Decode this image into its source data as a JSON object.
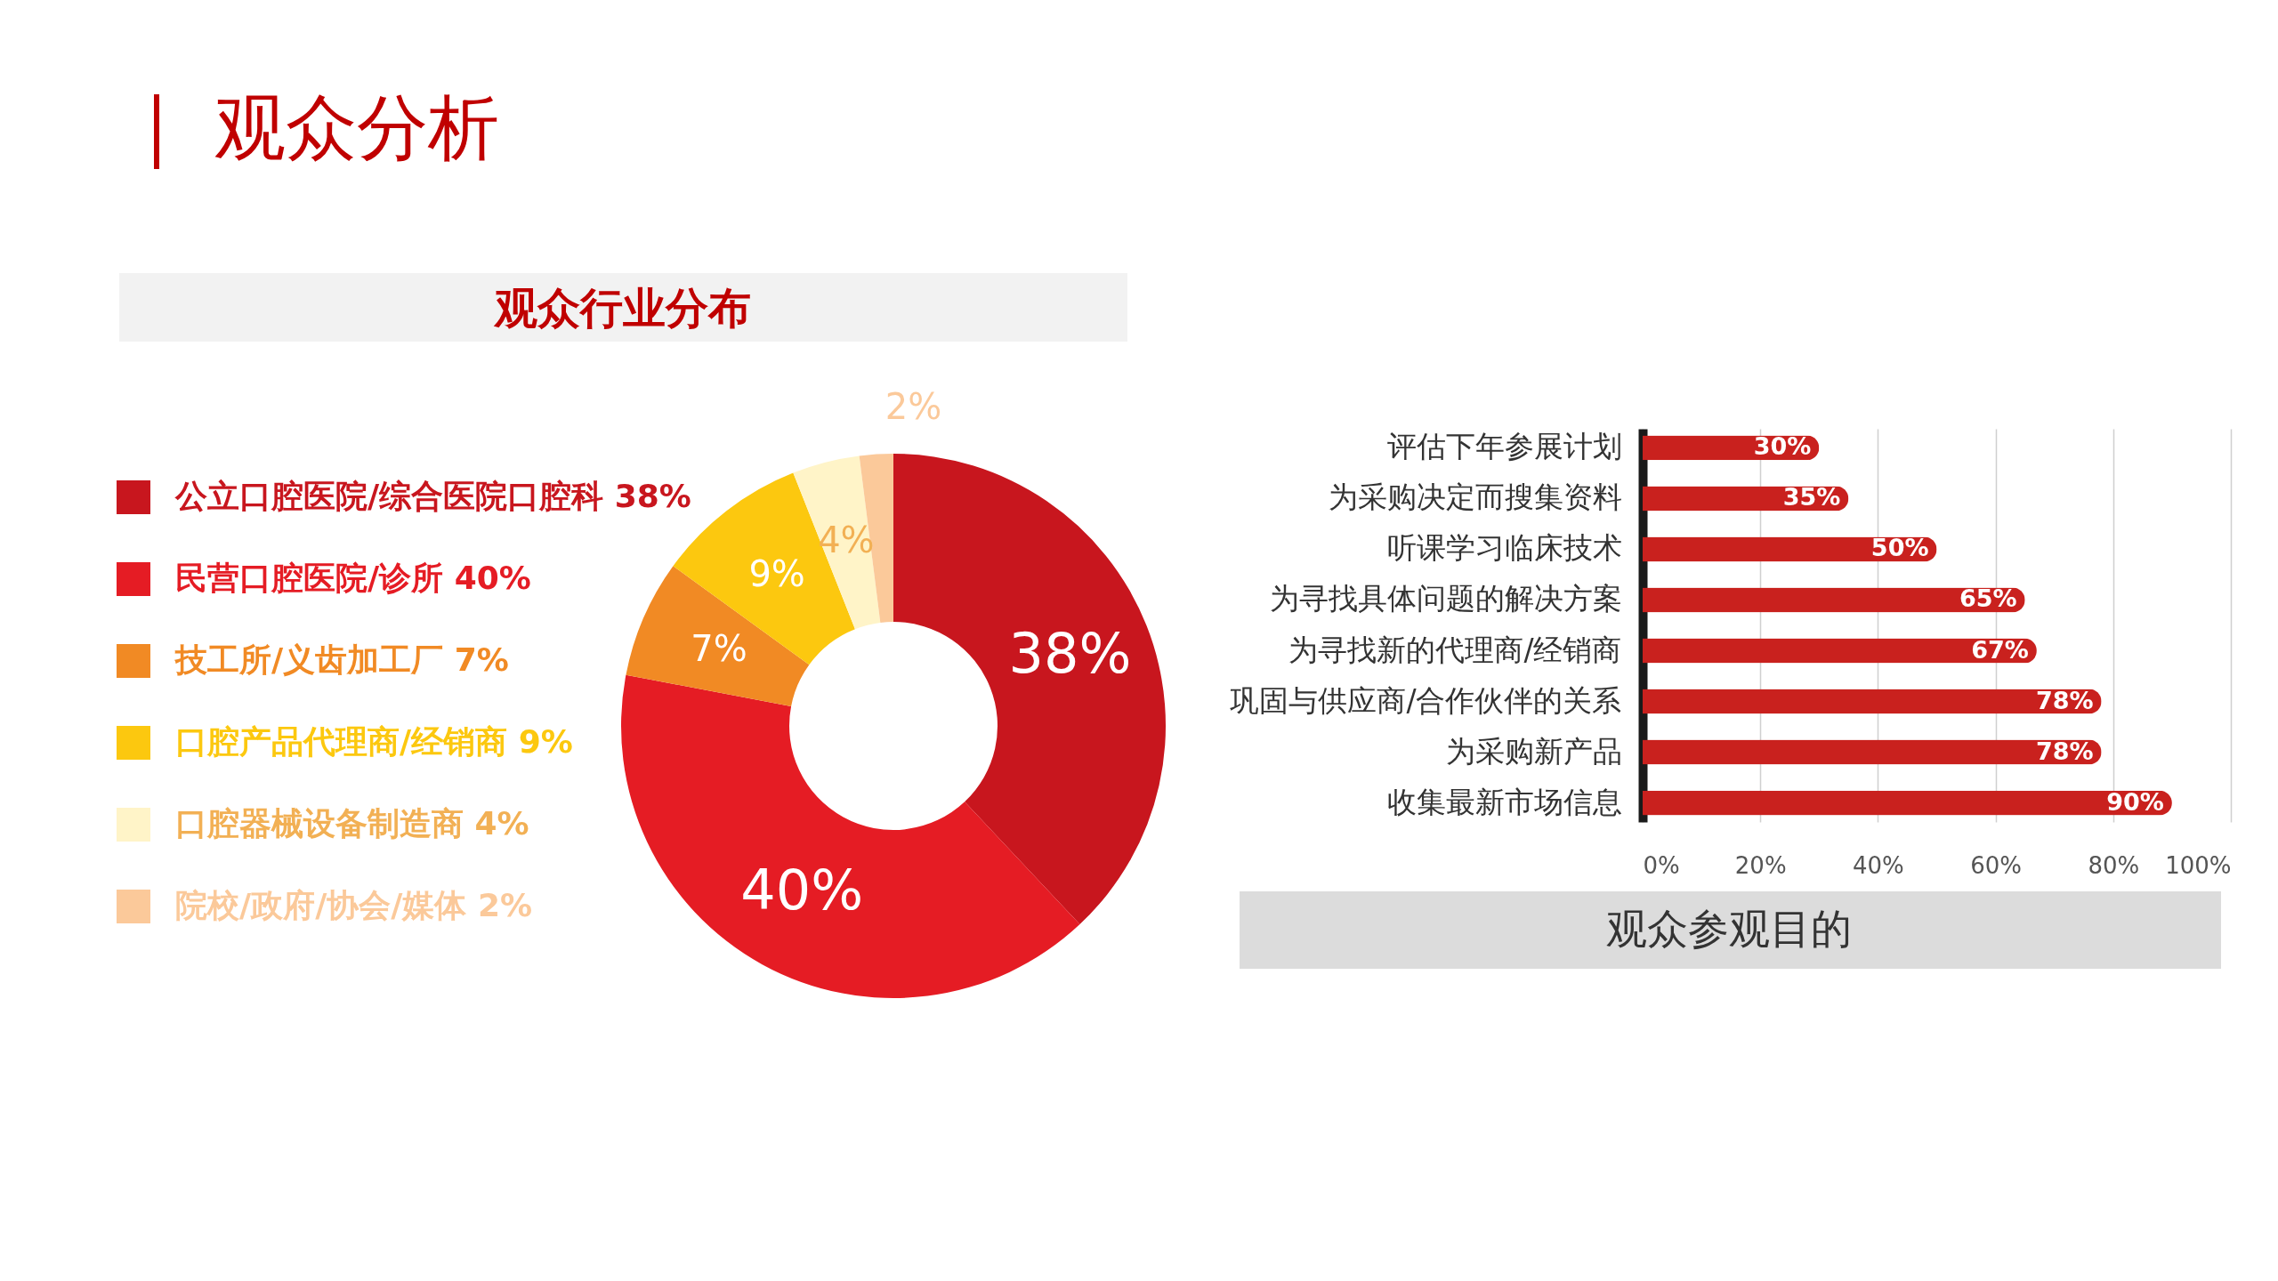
{
  "chart_data": [
    {
      "type": "donut",
      "title": "观众行业分布",
      "annotations": [
        "观众分析"
      ],
      "categories": [
        "公立口腔医院/综合医院口腔科 38%",
        "民营口腔医院/诊所 40%",
        "技工所/义齿加工厂 7%",
        "口腔产品代理商/经销商 9%",
        "口腔器械设备制造商 4%",
        "院校/政府/协会/媒体 2%"
      ],
      "values": [
        38,
        40,
        7,
        9,
        4,
        2
      ],
      "colors": [
        "#c8161e",
        "#e51c24",
        "#f18a24",
        "#fcc80f",
        "#fff4c8",
        "#fbc99a"
      ],
      "value_labels": [
        "38%",
        "40%",
        "7%",
        "9%",
        "4%",
        "2%"
      ],
      "legend": "left"
    },
    {
      "type": "bar",
      "orientation": "horizontal",
      "title": "观众参观目的",
      "categories": [
        "评估下年参展计划",
        "为采购决定而搜集资料",
        "听课学习临床技术",
        "为寻找具体问题的解决方案",
        "为寻找新的代理商/经销商",
        "巩固与供应商/合作伙伴的关系",
        "为采购新产品",
        "收集最新市场信息"
      ],
      "values": [
        30,
        35,
        50,
        65,
        67,
        78,
        78,
        90
      ],
      "color": "#c9211e",
      "value_labels": [
        "30%",
        "35%",
        "50%",
        "65%",
        "67%",
        "78%",
        "78%",
        "90%"
      ],
      "xlim": [
        0,
        100
      ],
      "xticks": [
        {
          "value": 0,
          "label": "0%"
        },
        {
          "value": 20,
          "label": "20%"
        },
        {
          "value": 40,
          "label": "40%"
        },
        {
          "value": 60,
          "label": "60%"
        },
        {
          "value": 80,
          "label": "80%"
        },
        {
          "value": 100,
          "label": "100%"
        }
      ],
      "grid": "x"
    }
  ]
}
